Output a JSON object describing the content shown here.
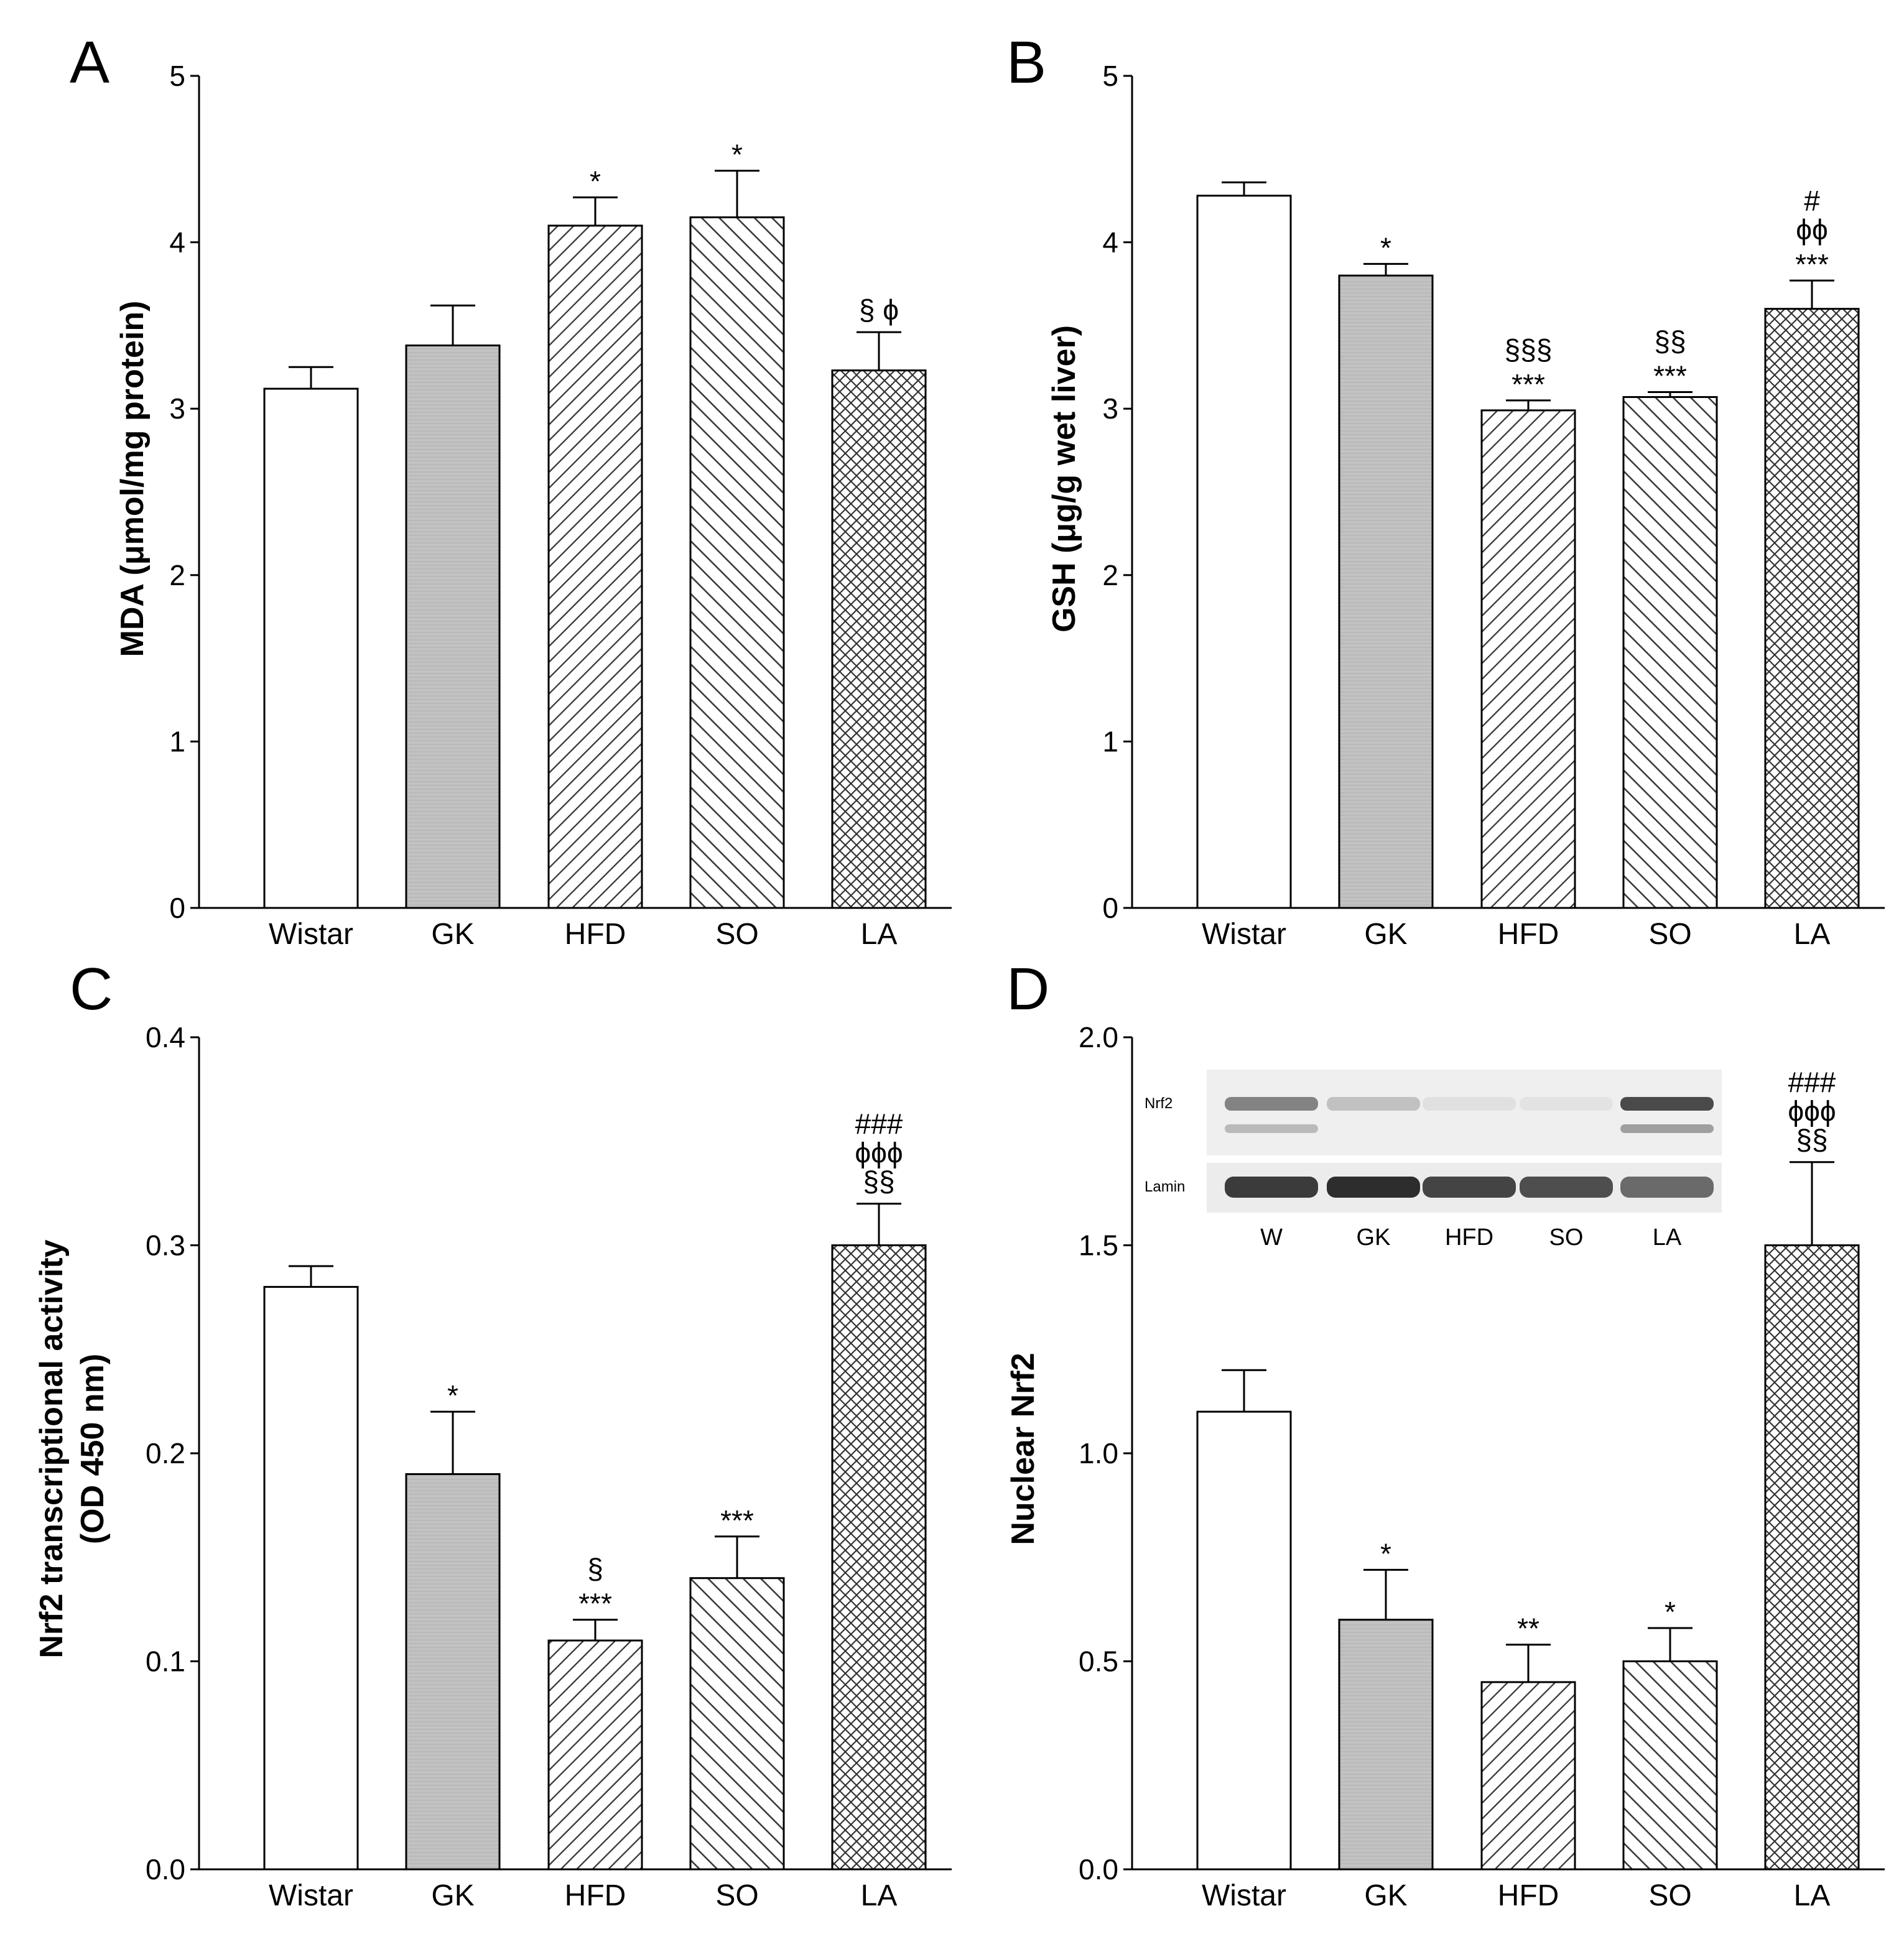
{
  "colors": {
    "axis": "#000000",
    "bar_white": "#ffffff",
    "bar_gk": "#c4c4c4",
    "hatch": "#333333"
  },
  "blot": {
    "row_labels": [
      "Nrf2",
      "Lamin"
    ],
    "lanes": [
      "W",
      "GK",
      "HFD",
      "SO",
      "LA"
    ],
    "nrf2_intensity": [
      0.55,
      0.22,
      0.06,
      0.04,
      0.85
    ],
    "lamin_intensity": [
      0.85,
      0.92,
      0.8,
      0.75,
      0.6
    ]
  },
  "chart_data": [
    {
      "panel": "A",
      "type": "bar",
      "ylabel": "MDA (μmol/mg protein)",
      "categories": [
        "Wistar",
        "GK",
        "HFD",
        "SO",
        "LA"
      ],
      "values": [
        3.12,
        3.38,
        4.1,
        4.15,
        3.23
      ],
      "errors": [
        0.13,
        0.24,
        0.17,
        0.28,
        0.23
      ],
      "ylim": [
        0,
        5
      ],
      "yticks": [
        "0",
        "1",
        "2",
        "3",
        "4",
        "5"
      ],
      "annotations": [
        [],
        [],
        [
          "*"
        ],
        [
          "*"
        ],
        [
          "§ ϕ"
        ]
      ]
    },
    {
      "panel": "B",
      "type": "bar",
      "ylabel": "GSH (μg/g wet liver)",
      "categories": [
        "Wistar",
        "GK",
        "HFD",
        "SO",
        "LA"
      ],
      "values": [
        4.28,
        3.8,
        2.99,
        3.07,
        3.6
      ],
      "errors": [
        0.08,
        0.07,
        0.06,
        0.03,
        0.17
      ],
      "ylim": [
        0,
        5
      ],
      "yticks": [
        "0",
        "1",
        "2",
        "3",
        "4",
        "5"
      ],
      "annotations": [
        [],
        [
          "*"
        ],
        [
          "***",
          "§§§"
        ],
        [
          "***",
          "§§"
        ],
        [
          "***",
          "ϕϕ",
          "#"
        ]
      ]
    },
    {
      "panel": "C",
      "type": "bar",
      "ylabel_lines": [
        "Nrf2 transcriptional activity",
        "(OD 450 nm)"
      ],
      "categories": [
        "Wistar",
        "GK",
        "HFD",
        "SO",
        "LA"
      ],
      "values": [
        0.28,
        0.19,
        0.11,
        0.14,
        0.3
      ],
      "errors": [
        0.01,
        0.03,
        0.01,
        0.02,
        0.02
      ],
      "ylim": [
        0,
        0.4
      ],
      "yticks": [
        "0.0",
        "0.1",
        "0.2",
        "0.3",
        "0.4"
      ],
      "annotations": [
        [],
        [
          "*"
        ],
        [
          "***",
          "§"
        ],
        [
          "***"
        ],
        [
          "§§",
          "ϕϕϕ",
          "###"
        ]
      ]
    },
    {
      "panel": "D",
      "type": "bar",
      "ylabel": "Nuclear Nrf2",
      "categories": [
        "Wistar",
        "GK",
        "HFD",
        "SO",
        "LA"
      ],
      "values": [
        1.1,
        0.6,
        0.45,
        0.5,
        1.5
      ],
      "errors": [
        0.1,
        0.12,
        0.09,
        0.08,
        0.2
      ],
      "ylim": [
        0,
        2
      ],
      "yticks": [
        "0.0",
        "0.5",
        "1.0",
        "1.5",
        "2.0"
      ],
      "annotations": [
        [],
        [
          "*"
        ],
        [
          "**"
        ],
        [
          "*"
        ],
        [
          "§§",
          "ϕϕϕ",
          "###"
        ]
      ]
    }
  ]
}
